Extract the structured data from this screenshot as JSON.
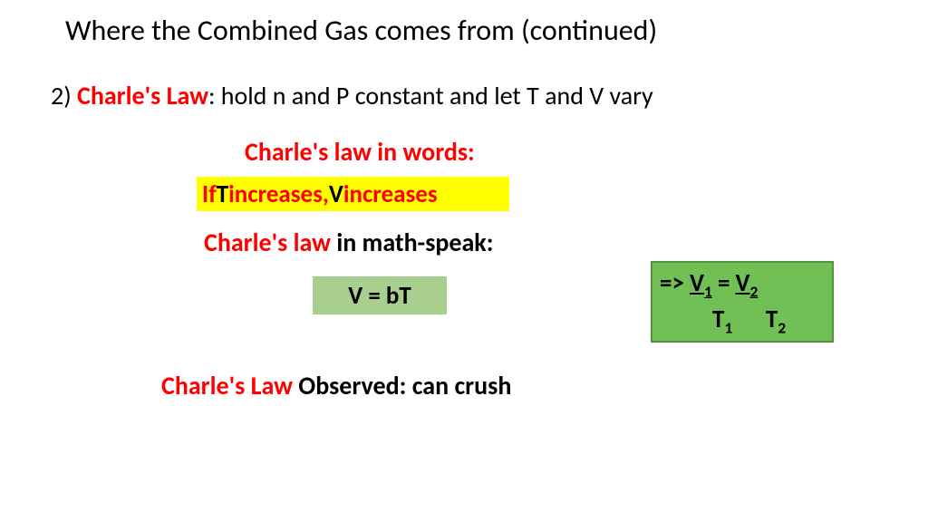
{
  "title": "Where the Combined Gas comes from (continued)",
  "line2": {
    "prefix": "2) ",
    "law_name": "Charle's Law",
    "rest": ":  hold n and P constant and let T and V vary"
  },
  "words_heading": "Charle's law in  words:",
  "highlight": {
    "p1": "If ",
    "p2": "T ",
    "p3": "increases, ",
    "p4": "V ",
    "p5": "increases"
  },
  "math_heading": {
    "red": "Charle's law ",
    "black": "in math-speak:"
  },
  "eq1": "V =  bT",
  "eq2": {
    "arrow": "=> ",
    "v1": "V",
    "s1": "1",
    "eqs": " =  ",
    "v2": "V",
    "s2": "2",
    "t1": "T",
    "s3": "1",
    "gap": "      ",
    "t2": "T",
    "s4": "2"
  },
  "observed": {
    "red": "Charle's Law ",
    "black": "Observed: can crush"
  },
  "colors": {
    "red": "#ff0000",
    "black": "#000000",
    "yellow_hl": "#ffff00",
    "green_light": "#a9cf8f",
    "green_dark": "#71c055",
    "green_border": "#55923f",
    "background": "#ffffff"
  }
}
